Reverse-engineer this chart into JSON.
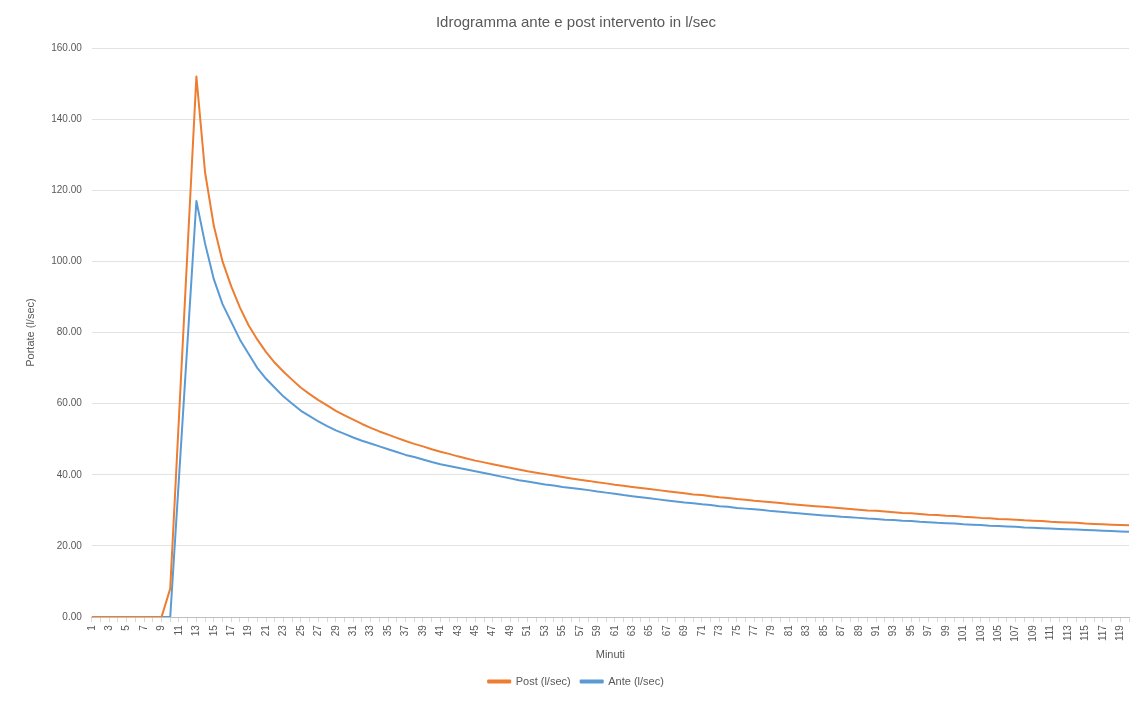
{
  "chart_data": {
    "type": "line",
    "title": "Idrogramma ante e post intervento in l/sec",
    "xlabel": "Minuti",
    "ylabel": "Portate (l/sec)",
    "categories": [
      "1",
      null,
      "3",
      null,
      "5",
      null,
      "7",
      null,
      "9",
      null,
      "11",
      null,
      "13",
      null,
      "15",
      null,
      "17",
      null,
      "19",
      null,
      "21",
      null,
      "23",
      null,
      "25",
      null,
      "27",
      null,
      "29",
      null,
      "31",
      null,
      "33",
      null,
      "35",
      null,
      "37",
      null,
      "39",
      null,
      "41",
      null,
      "43",
      null,
      "45",
      null,
      "47",
      null,
      "49",
      null,
      "51",
      null,
      "53",
      null,
      "55",
      null,
      "57",
      null,
      "59",
      null,
      "61",
      null,
      "63",
      null,
      "65",
      null,
      "67",
      null,
      "69",
      null,
      "71",
      null,
      "73",
      null,
      "75",
      null,
      "77",
      null,
      "79",
      null,
      "81",
      null,
      "83",
      null,
      "85",
      null,
      "87",
      null,
      "89",
      null,
      "91",
      null,
      "93",
      null,
      "95",
      null,
      "97",
      null,
      "99",
      null,
      "101",
      null,
      "103",
      null,
      "105",
      null,
      "107",
      null,
      "109",
      null,
      "111",
      null,
      "113",
      null,
      "115",
      null,
      "117",
      null,
      "119",
      null
    ],
    "series": [
      {
        "name": "Ante (l/sec)",
        "color": "#5b9bd5",
        "values": [
          null,
          null,
          null,
          null,
          null,
          null,
          null,
          null,
          0,
          0,
          39,
          78,
          117,
          105,
          95,
          88,
          83,
          78,
          74,
          70,
          67,
          64.5,
          62,
          60,
          58,
          56.5,
          55,
          53.7,
          52.5,
          51.5,
          50.5,
          49.6,
          48.8,
          48,
          47.2,
          46.4,
          45.6,
          45,
          44.3,
          43.6,
          43,
          42.5,
          42,
          41.5,
          41,
          40.5,
          40,
          39.5,
          39,
          38.5,
          38.1,
          37.7,
          37.3,
          37,
          36.6,
          36.3,
          36,
          35.7,
          35.3,
          35,
          34.7,
          34.3,
          34,
          33.7,
          33.4,
          33.1,
          32.8,
          32.5,
          32.2,
          32,
          31.7,
          31.5,
          31.2,
          31,
          30.7,
          30.5,
          30.3,
          30.1,
          29.8,
          29.6,
          29.4,
          29.2,
          29,
          28.8,
          28.6,
          28.4,
          28.2,
          28.1,
          27.9,
          27.7,
          27.6,
          27.4,
          27.3,
          27.1,
          27,
          26.8,
          26.7,
          26.5,
          26.4,
          26.3,
          26.1,
          26,
          25.9,
          25.7,
          25.6,
          25.5,
          25.4,
          25.2,
          25.1,
          25,
          24.9,
          24.8,
          24.7,
          24.6,
          24.5,
          24.4,
          24.3,
          24.2,
          24.1,
          24
        ]
      },
      {
        "name": "Post (l/sec)",
        "color": "#ed7d31",
        "values": [
          0,
          0,
          0,
          0,
          0,
          0,
          0,
          0,
          0,
          8,
          56,
          104,
          152,
          125,
          110,
          100,
          93,
          87,
          82,
          78,
          74.5,
          71.5,
          69,
          66.7,
          64.5,
          62.7,
          61,
          59.5,
          58,
          56.7,
          55.5,
          54.3,
          53.2,
          52.2,
          51.3,
          50.4,
          49.5,
          48.7,
          48,
          47.2,
          46.5,
          45.9,
          45.2,
          44.6,
          44,
          43.5,
          43,
          42.5,
          42,
          41.5,
          41,
          40.6,
          40.2,
          39.8,
          39.4,
          39,
          38.6,
          38.3,
          37.9,
          37.6,
          37.2,
          36.9,
          36.6,
          36.3,
          36,
          35.7,
          35.4,
          35.1,
          34.8,
          34.5,
          34.3,
          34,
          33.7,
          33.5,
          33.2,
          33,
          32.7,
          32.5,
          32.3,
          32.1,
          31.8,
          31.6,
          31.4,
          31.2,
          31,
          30.8,
          30.6,
          30.4,
          30.2,
          30,
          29.9,
          29.7,
          29.5,
          29.3,
          29.2,
          29,
          28.8,
          28.7,
          28.5,
          28.4,
          28.2,
          28.1,
          27.9,
          27.8,
          27.6,
          27.5,
          27.4,
          27.2,
          27.1,
          27,
          26.8,
          26.7,
          26.6,
          26.5,
          26.3,
          26.2,
          26.1,
          26,
          25.9,
          25.8
        ]
      }
    ],
    "ylim": [
      0,
      160
    ],
    "yticks": [
      {
        "value": 0,
        "label": "0.00"
      },
      {
        "value": 20,
        "label": "20.00"
      },
      {
        "value": 40,
        "label": "40.00"
      },
      {
        "value": 60,
        "label": "60.00"
      },
      {
        "value": 80,
        "label": "80.00"
      },
      {
        "value": 100,
        "label": "100.00"
      },
      {
        "value": 120,
        "label": "120.00"
      },
      {
        "value": 140,
        "label": "140.00"
      },
      {
        "value": 160,
        "label": "160.00"
      }
    ],
    "grid": "y",
    "legend": "bottom",
    "marker": "none",
    "line_style": "solid"
  }
}
